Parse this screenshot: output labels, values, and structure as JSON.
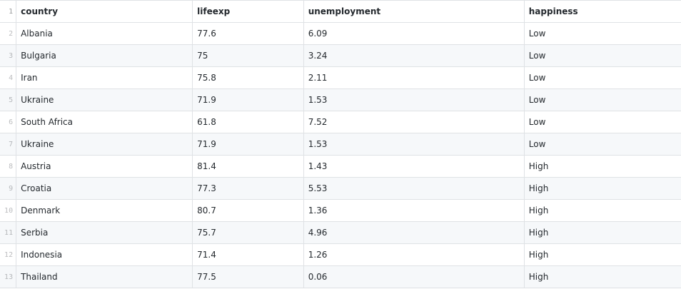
{
  "table": {
    "header_line": "1",
    "columns": [
      "country",
      "lifeexp",
      "unemployment",
      "happiness"
    ],
    "rows": [
      {
        "line": "2",
        "cells": [
          "Albania",
          "77.6",
          "6.09",
          "Low"
        ]
      },
      {
        "line": "3",
        "cells": [
          "Bulgaria",
          "75",
          "3.24",
          "Low"
        ]
      },
      {
        "line": "4",
        "cells": [
          "Iran",
          "75.8",
          "2.11",
          "Low"
        ]
      },
      {
        "line": "5",
        "cells": [
          "Ukraine",
          "71.9",
          "1.53",
          "Low"
        ]
      },
      {
        "line": "6",
        "cells": [
          "South Africa",
          "61.8",
          "7.52",
          "Low"
        ]
      },
      {
        "line": "7",
        "cells": [
          "Ukraine",
          "71.9",
          "1.53",
          "Low"
        ]
      },
      {
        "line": "8",
        "cells": [
          "Austria",
          "81.4",
          "1.43",
          "High"
        ]
      },
      {
        "line": "9",
        "cells": [
          "Croatia",
          "77.3",
          "5.53",
          "High"
        ]
      },
      {
        "line": "10",
        "cells": [
          "Denmark",
          "80.7",
          "1.36",
          "High"
        ]
      },
      {
        "line": "11",
        "cells": [
          "Serbia",
          "75.7",
          "4.96",
          "High"
        ]
      },
      {
        "line": "12",
        "cells": [
          "Indonesia",
          "71.4",
          "1.26",
          "High"
        ]
      },
      {
        "line": "13",
        "cells": [
          "Thailand",
          "77.5",
          "0.06",
          "High"
        ]
      }
    ]
  }
}
